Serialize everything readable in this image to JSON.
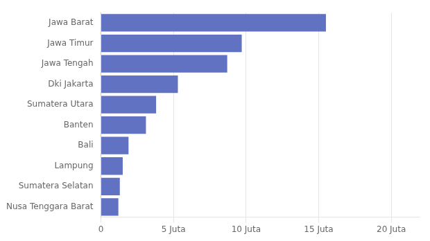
{
  "chart_data": {
    "type": "bar",
    "orientation": "horizontal",
    "categories": [
      "Nusa Tenggara Barat",
      "Sumatera Selatan",
      "Lampung",
      "Bali",
      "Banten",
      "Sumatera Utara",
      "Dki Jakarta",
      "Jawa Tengah",
      "Jawa Timur",
      "Jawa Barat"
    ],
    "values": [
      1.2,
      1.3,
      1.5,
      1.9,
      3.1,
      3.8,
      5.3,
      8.7,
      9.7,
      15.5
    ],
    "color": "#6272c3",
    "xlim": [
      0,
      22
    ],
    "xticks": [
      0,
      {
        "value": 5,
        "label": "5 Juta"
      },
      {
        "value": 10,
        "label": "10 Juta"
      },
      {
        "value": 15,
        "label": "15 Juta"
      },
      {
        "value": 20,
        "label": "20 Juta"
      }
    ],
    "grid": true
  }
}
